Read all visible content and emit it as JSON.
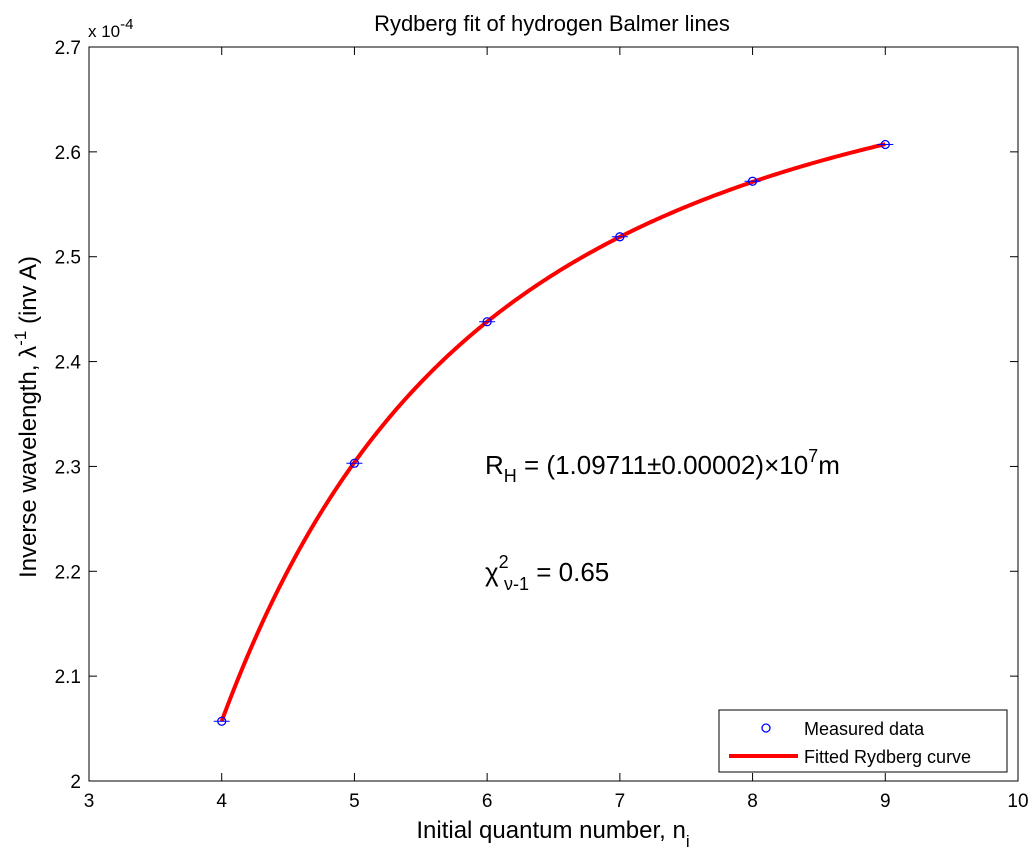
{
  "chart_data": {
    "type": "scatter",
    "title": "Rydberg fit of hydrogen Balmer lines",
    "xlabel": {
      "main": "Initial quantum number, n",
      "sub": "i"
    },
    "ylabel": {
      "main": "Inverse wavelength, ",
      "greek": "λ",
      "sup": "-1",
      "rest": " (inv A)"
    },
    "xlim": [
      3,
      10
    ],
    "ylim": [
      2.0,
      2.7
    ],
    "y_scale_label": {
      "prefix": "x 10",
      "exp": "-4"
    },
    "x_ticks": [
      3,
      4,
      5,
      6,
      7,
      8,
      9,
      10
    ],
    "x_tick_labels": [
      "3",
      "4",
      "5",
      "6",
      "7",
      "8",
      "9",
      "10"
    ],
    "y_ticks": [
      2.0,
      2.1,
      2.2,
      2.3,
      2.4,
      2.5,
      2.6,
      2.7
    ],
    "y_tick_labels": [
      "2",
      "2.1",
      "2.2",
      "2.3",
      "2.4",
      "2.5",
      "2.6",
      "2.7"
    ],
    "grid": false,
    "legend_position": "bottom-right",
    "series": [
      {
        "name": "Measured data",
        "kind": "markers",
        "color": "#0000ff",
        "x": [
          4,
          5,
          6,
          7,
          8,
          9
        ],
        "y": [
          2.057,
          2.303,
          2.438,
          2.519,
          2.572,
          2.607
        ]
      },
      {
        "name": "Fitted Rydberg curve",
        "kind": "line",
        "color": "#ff0000",
        "x_range": [
          4,
          9
        ],
        "rydberg_R": 1.09711
      }
    ],
    "annotations": {
      "rh": {
        "symbol": "R",
        "sub": "H",
        "eq": " = (1.09711",
        "pm": "±",
        "mid": "0.00002)",
        "times": "×",
        "ten": "10",
        "exp": "7",
        "unit": "m"
      },
      "chi": {
        "symbol": "χ",
        "sup": "2",
        "sub": "ν-1",
        "eq": " = 0.65"
      }
    }
  }
}
